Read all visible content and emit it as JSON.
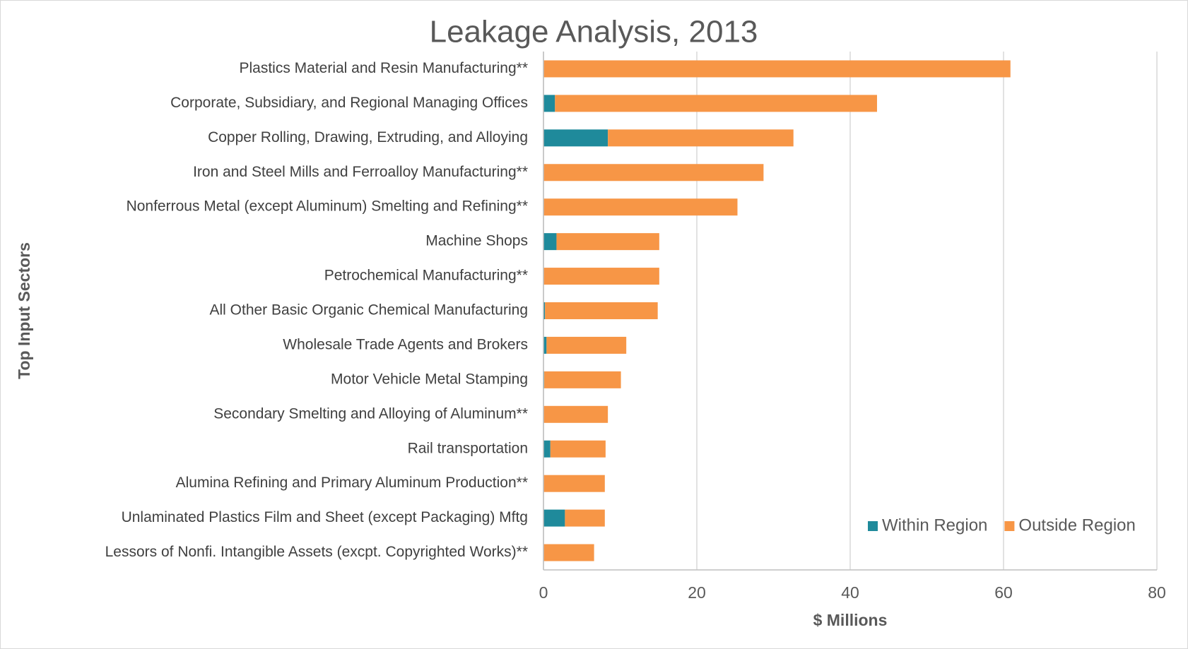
{
  "chart_data": {
    "type": "stacked_bar_horizontal",
    "title": "Leakage Analysis, 2013",
    "x_label": "$ Millions",
    "y_label": "Top Input Sectors",
    "categories": [
      "Plastics Material and Resin Manufacturing**",
      "Corporate, Subsidiary, and Regional Managing Offices",
      "Copper Rolling, Drawing, Extruding, and Alloying",
      "Iron and Steel Mills and Ferroalloy Manufacturing**",
      "Nonferrous Metal (except Aluminum) Smelting and Refining**",
      "Machine Shops",
      "Petrochemical Manufacturing**",
      "All Other Basic Organic Chemical Manufacturing",
      "Wholesale Trade Agents and Brokers",
      "Motor Vehicle Metal Stamping",
      "Secondary Smelting and Alloying of Aluminum**",
      "Rail transportation",
      "Alumina Refining and Primary Aluminum Production**",
      "Unlaminated Plastics Film and Sheet (except Packaging) Mftg",
      "Lessors of Nonfi. Intangible Assets (excpt. Copyrighted Works)**"
    ],
    "series": [
      {
        "name": "Within Region",
        "color": "#1f8a9b",
        "values": [
          0,
          1.5,
          8.4,
          0,
          0,
          1.7,
          0,
          0.2,
          0.4,
          0.1,
          0,
          0.9,
          0,
          2.8,
          0
        ]
      },
      {
        "name": "Outside Region",
        "color": "#f79646",
        "values": [
          60.9,
          42.0,
          24.2,
          28.7,
          25.3,
          13.4,
          15.1,
          14.7,
          10.4,
          10.0,
          8.4,
          7.2,
          8.0,
          5.2,
          6.6
        ]
      }
    ],
    "xlim": [
      0,
      80
    ],
    "xticks": [
      0,
      20,
      40,
      60,
      80
    ],
    "grid": true,
    "legend": "lower right"
  }
}
